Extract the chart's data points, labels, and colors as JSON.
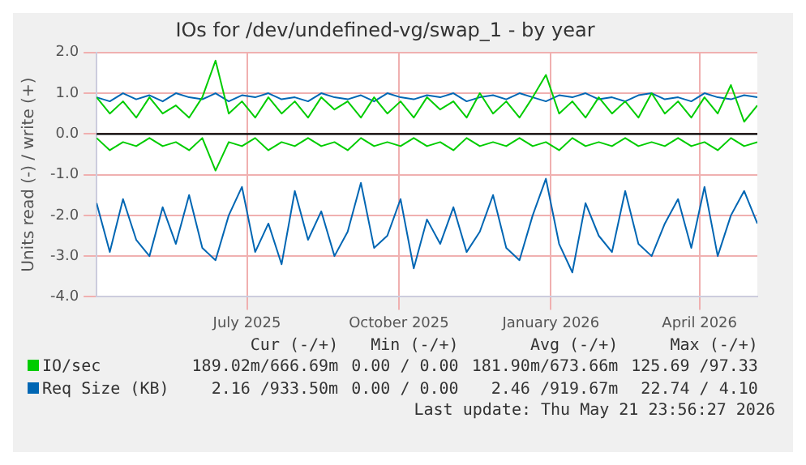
{
  "chart_data": {
    "type": "line",
    "title": "IOs for /dev/undefined-vg/swap_1 - by year",
    "ylabel": "Units read (-) / write (+)",
    "x": [
      "2025-04-16",
      "2025-04-24",
      "2025-05-02",
      "2025-05-10",
      "2025-05-18",
      "2025-05-26",
      "2025-06-03",
      "2025-06-11",
      "2025-06-19",
      "2025-06-27",
      "2025-07-05",
      "2025-07-13",
      "2025-07-21",
      "2025-07-29",
      "2025-08-06",
      "2025-08-14",
      "2025-08-22",
      "2025-08-30",
      "2025-09-07",
      "2025-09-15",
      "2025-09-23",
      "2025-10-01",
      "2025-10-09",
      "2025-10-17",
      "2025-10-25",
      "2025-11-02",
      "2025-11-10",
      "2025-11-18",
      "2025-11-26",
      "2025-12-04",
      "2025-12-12",
      "2025-12-20",
      "2025-12-28",
      "2026-01-05",
      "2026-01-13",
      "2026-01-21",
      "2026-01-29",
      "2026-02-06",
      "2026-02-14",
      "2026-02-22",
      "2026-03-02",
      "2026-03-10",
      "2026-03-18",
      "2026-03-26",
      "2026-04-03",
      "2026-04-11",
      "2026-04-19",
      "2026-04-27",
      "2026-05-05",
      "2026-05-13",
      "2026-05-21"
    ],
    "series": [
      {
        "name": "IO/sec",
        "color": "#00cc00",
        "values": [
          0.9,
          0.5,
          0.8,
          0.4,
          0.9,
          0.5,
          0.7,
          0.4,
          0.9,
          1.8,
          0.5,
          0.8,
          0.4,
          0.9,
          0.5,
          0.8,
          0.4,
          0.9,
          0.6,
          0.8,
          0.4,
          0.9,
          0.5,
          0.8,
          0.4,
          0.9,
          0.6,
          0.8,
          0.4,
          1.0,
          0.5,
          0.8,
          0.4,
          0.9,
          1.45,
          0.5,
          0.8,
          0.4,
          0.9,
          0.5,
          0.8,
          0.4,
          1.0,
          0.5,
          0.8,
          0.4,
          0.9,
          0.5,
          1.2,
          0.3,
          0.7
        ]
      },
      {
        "color": "#00cc00",
        "values": [
          -0.1,
          -0.4,
          -0.2,
          -0.3,
          -0.1,
          -0.3,
          -0.2,
          -0.4,
          -0.1,
          -0.9,
          -0.2,
          -0.3,
          -0.1,
          -0.4,
          -0.2,
          -0.3,
          -0.1,
          -0.3,
          -0.2,
          -0.4,
          -0.1,
          -0.3,
          -0.2,
          -0.3,
          -0.1,
          -0.3,
          -0.2,
          -0.4,
          -0.1,
          -0.3,
          -0.2,
          -0.3,
          -0.1,
          -0.3,
          -0.2,
          -0.4,
          -0.1,
          -0.3,
          -0.2,
          -0.3,
          -0.1,
          -0.3,
          -0.2,
          -0.3,
          -0.1,
          -0.3,
          -0.2,
          -0.4,
          -0.1,
          -0.3,
          -0.2
        ]
      },
      {
        "name": "Req Size (KB)",
        "color": "#0066b3",
        "values": [
          0.9,
          0.8,
          1.0,
          0.85,
          0.95,
          0.8,
          1.0,
          0.9,
          0.85,
          1.0,
          0.8,
          0.95,
          0.9,
          1.0,
          0.85,
          0.9,
          0.8,
          1.0,
          0.9,
          0.85,
          0.95,
          0.8,
          1.0,
          0.9,
          0.85,
          0.95,
          0.9,
          1.0,
          0.8,
          0.9,
          0.95,
          0.85,
          1.0,
          0.9,
          0.8,
          0.95,
          0.9,
          1.0,
          0.85,
          0.9,
          0.8,
          0.95,
          1.0,
          0.85,
          0.9,
          0.8,
          1.0,
          0.9,
          0.85,
          0.95,
          0.9
        ]
      },
      {
        "color": "#0066b3",
        "values": [
          -1.7,
          -2.9,
          -1.6,
          -2.6,
          -3.0,
          -1.8,
          -2.7,
          -1.5,
          -2.8,
          -3.1,
          -2.0,
          -1.3,
          -2.9,
          -2.2,
          -3.2,
          -1.4,
          -2.6,
          -1.9,
          -3.0,
          -2.4,
          -1.2,
          -2.8,
          -2.5,
          -1.6,
          -3.3,
          -2.1,
          -2.7,
          -1.8,
          -2.9,
          -2.4,
          -1.5,
          -2.8,
          -3.1,
          -2.0,
          -1.1,
          -2.7,
          -3.4,
          -1.7,
          -2.5,
          -2.9,
          -1.4,
          -2.7,
          -3.0,
          -2.2,
          -1.6,
          -2.8,
          -1.3,
          -3.0,
          -2.0,
          -1.4,
          -2.2
        ]
      }
    ],
    "xlim": [
      "2025-04-16",
      "2026-05-21"
    ],
    "xticks": [
      {
        "value": "2025-07-16",
        "label": "July 2025"
      },
      {
        "value": "2025-10-16",
        "label": "October 2025"
      },
      {
        "value": "2026-01-16",
        "label": "January 2026"
      },
      {
        "value": "2026-04-16",
        "label": "April 2026"
      }
    ],
    "ylim": [
      -4,
      2
    ],
    "yticks": [
      {
        "value": -4,
        "label": "-4.0"
      },
      {
        "value": -3,
        "label": "-3.0"
      },
      {
        "value": -2,
        "label": "-2.0"
      },
      {
        "value": -1,
        "label": "-1.0"
      },
      {
        "value": 0,
        "label": "0.0"
      },
      {
        "value": 1,
        "label": "1.0"
      },
      {
        "value": 2,
        "label": "2.0"
      }
    ],
    "ref_lines": [
      {
        "axis": "y",
        "value": 0,
        "color": "#000000"
      }
    ],
    "grid": true,
    "legend": "bottom",
    "marker": "none",
    "line_style": "solid",
    "annotations": [
      "Cur (-/+)",
      "Min (-/+)",
      "Avg (-/+)",
      "Max (-/+)",
      "189.02m/666.69m",
      "0.00 / 0.00",
      "181.90m/673.66m",
      "125.69 /97.33",
      "2.16 /933.50m",
      "0.00 / 0.00",
      "2.46 /919.67m",
      "22.74 / 4.10",
      "Last update: Thu May 21 23:56:27 2026"
    ]
  }
}
